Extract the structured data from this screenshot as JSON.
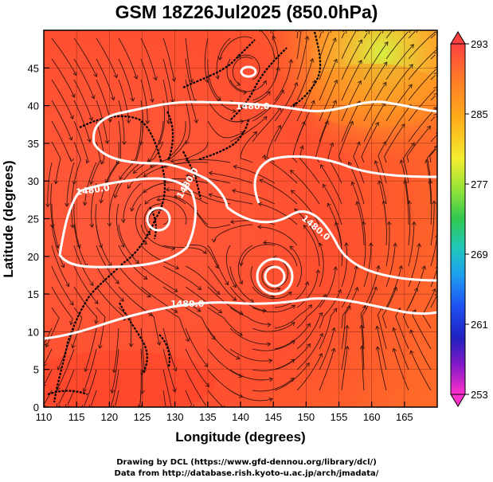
{
  "title": "GSM 18Z26Jul2025 (850.0hPa)",
  "xaxis": {
    "label": "Longitude (degrees)",
    "ticks": [
      "110",
      "115",
      "120",
      "125",
      "130",
      "135",
      "140",
      "145",
      "150",
      "155",
      "160",
      "165"
    ]
  },
  "yaxis": {
    "label": "Latitude  (degrees)",
    "ticks": [
      "0",
      "5",
      "10",
      "15",
      "20",
      "25",
      "30",
      "35",
      "40",
      "45"
    ]
  },
  "colorbar": {
    "ticks": [
      "293",
      "285",
      "277",
      "269",
      "261",
      "253"
    ],
    "colors": [
      "#ff4040",
      "#ff6a2a",
      "#ff9a18",
      "#ffc81a",
      "#f4ef3a",
      "#a8e63a",
      "#3ac83c",
      "#22c8a8",
      "#1e9ef0",
      "#1e4af0",
      "#2020c8",
      "#6a1ac8",
      "#b41ac8",
      "#ff33cc"
    ]
  },
  "contour_labels": [
    "1480.0",
    "1480.0",
    "1480.0",
    "1480.0",
    "1480.0"
  ],
  "credits": [
    "Drawing by DCL (https://www.gfd-dennou.org/library/dcl/)",
    "Data from http://database.rish.kyoto-u.ac.jp/arch/jmadata/"
  ]
}
